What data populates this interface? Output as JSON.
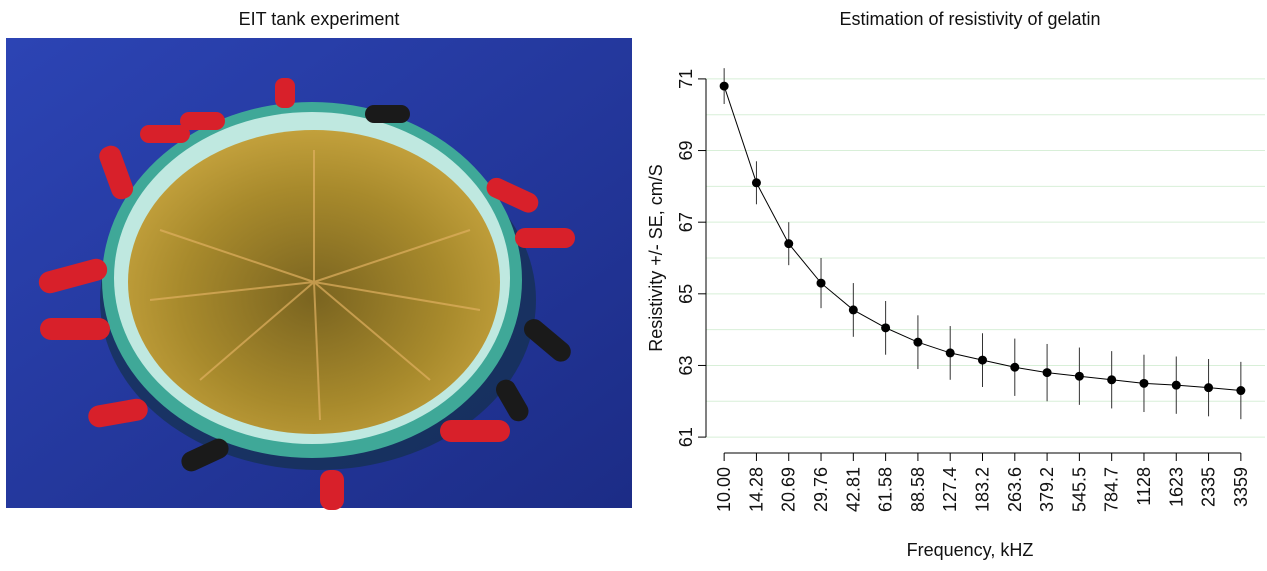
{
  "photo": {
    "title": "EIT tank experiment"
  },
  "chart_data": {
    "type": "line",
    "title": "Estimation of resistivity of gelatin",
    "x_label": "Frequency, kHZ",
    "y_label": "Resistivity +/- SE, cm/S",
    "categories": [
      "10.00",
      "14.28",
      "20.69",
      "29.76",
      "42.81",
      "61.58",
      "88.58",
      "127.4",
      "183.2",
      "263.6",
      "379.2",
      "545.5",
      "784.7",
      "1128",
      "1623",
      "2335",
      "3359"
    ],
    "values": [
      70.8,
      68.1,
      66.4,
      65.3,
      64.55,
      64.05,
      63.65,
      63.35,
      63.15,
      62.95,
      62.8,
      62.7,
      62.6,
      62.5,
      62.45,
      62.38,
      62.3
    ],
    "errors": [
      0.5,
      0.6,
      0.6,
      0.7,
      0.75,
      0.75,
      0.75,
      0.75,
      0.75,
      0.8,
      0.8,
      0.8,
      0.8,
      0.8,
      0.8,
      0.8,
      0.8
    ],
    "color": "#000000",
    "ylim": [
      60.5,
      71.5
    ],
    "yticks": [
      61,
      63,
      65,
      67,
      69,
      71
    ],
    "yminor_grid": [
      62,
      64,
      66,
      68,
      70
    ],
    "grid": true,
    "grid_color": "#d8efd8"
  }
}
